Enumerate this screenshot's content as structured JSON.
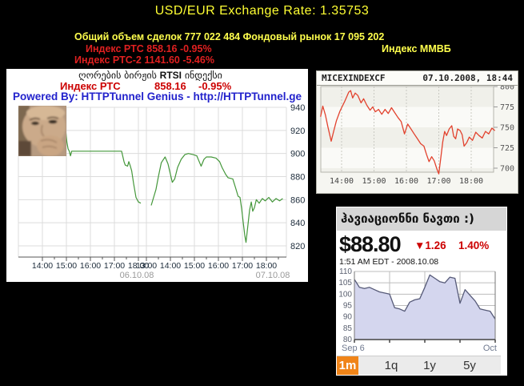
{
  "header": {
    "title": "USD/EUR Exchange Rate: 1.35753",
    "volume_line": "Общий объем сделок 777 022 484 Фондовый рынок 17 095 202",
    "rts_line": "Индекс РТС 858.16 -0.95%",
    "rts2_line": "Индекс РТС-2 1141.60 -5.46%",
    "mmvb_label": "Индекс ММВБ",
    "title_color": "#ffff33",
    "alert_color": "#e02020"
  },
  "rtsi_panel": {
    "georgian_title_pre": "ღორების ბირჟის ",
    "georgian_title_bold": "RTSI",
    "georgian_title_post": " ინდექსი",
    "index_label": "Индекс РТС",
    "index_value": "858.16",
    "index_change": "-0.95%",
    "powered_by": "Powered By: HTTPTunnel Genius  -  http://HTTPTunnel.ge"
  },
  "oil_widget": {
    "title": "ჰავიაციონნი ნავთი :)",
    "price": "$88.80",
    "change": "▼1.26",
    "change_pct": "1.40%",
    "timestamp": "1:51 AM EDT - 2008.10.08",
    "range_buttons": [
      "1m",
      "1q",
      "1y",
      "5y"
    ],
    "active_button": "1m",
    "active_color": "#f08418"
  },
  "chart_data": [
    {
      "id": "rtsi",
      "type": "line",
      "title": "ღორების ბირჟის RTSI ინდექსი",
      "line_color": "#44973a",
      "ylim": [
        810,
        946
      ],
      "yticks": [
        940,
        920,
        900,
        880,
        860,
        840,
        820
      ],
      "days": [
        {
          "date": "06.10.08",
          "xticks": [
            "14:00",
            "15:00",
            "16:00",
            "17:00",
            "18:00"
          ],
          "series": [
            [
              13.55,
              935
            ],
            [
              13.9,
              934
            ],
            [
              14.3,
              932
            ],
            [
              14.6,
              929
            ],
            [
              14.85,
              924
            ],
            [
              14.97,
              920
            ],
            [
              15.02,
              910
            ],
            [
              15.07,
              904
            ],
            [
              15.12,
              902
            ],
            [
              15.17,
              898
            ],
            [
              15.22,
              902
            ],
            [
              16.0,
              902
            ],
            [
              17.3,
              902
            ],
            [
              17.4,
              893
            ],
            [
              17.45,
              890
            ],
            [
              17.55,
              889
            ],
            [
              17.6,
              893
            ],
            [
              17.65,
              890
            ],
            [
              17.72,
              885
            ],
            [
              17.8,
              874
            ],
            [
              17.9,
              862
            ],
            [
              18.0,
              858
            ],
            [
              18.1,
              857
            ]
          ]
        },
        {
          "date": "07.10.08",
          "xticks": [
            "13:00",
            "14:00",
            "15:00",
            "16:00",
            "17:00",
            "18:00"
          ],
          "series": [
            [
              13.2,
              855
            ],
            [
              13.3,
              862
            ],
            [
              13.4,
              869
            ],
            [
              13.5,
              880
            ],
            [
              13.62,
              892
            ],
            [
              13.78,
              897
            ],
            [
              13.9,
              891
            ],
            [
              14.0,
              882
            ],
            [
              14.08,
              875
            ],
            [
              14.18,
              878
            ],
            [
              14.3,
              888
            ],
            [
              14.45,
              895
            ],
            [
              14.6,
              899
            ],
            [
              14.75,
              900
            ],
            [
              14.95,
              899
            ],
            [
              15.1,
              898
            ],
            [
              15.2,
              893
            ],
            [
              15.28,
              889
            ],
            [
              15.4,
              895
            ],
            [
              15.5,
              897
            ],
            [
              15.7,
              897
            ],
            [
              15.9,
              896
            ],
            [
              16.05,
              893
            ],
            [
              16.15,
              888
            ],
            [
              16.3,
              882
            ],
            [
              16.4,
              879
            ],
            [
              16.6,
              878
            ],
            [
              16.72,
              870
            ],
            [
              16.82,
              863
            ],
            [
              16.9,
              862
            ],
            [
              16.97,
              852
            ],
            [
              17.03,
              841
            ],
            [
              17.1,
              829
            ],
            [
              17.15,
              823
            ],
            [
              17.22,
              836
            ],
            [
              17.3,
              851
            ],
            [
              17.37,
              858
            ],
            [
              17.43,
              850
            ],
            [
              17.5,
              853
            ],
            [
              17.58,
              860
            ],
            [
              17.7,
              857
            ],
            [
              17.83,
              861
            ],
            [
              17.95,
              859
            ],
            [
              18.1,
              862
            ],
            [
              18.25,
              858
            ],
            [
              18.4,
              861
            ],
            [
              18.55,
              859
            ],
            [
              18.68,
              861
            ]
          ]
        }
      ]
    },
    {
      "id": "micex",
      "type": "line",
      "symbol": "MICEXINDEXCF",
      "timestamp": "07.10.2008, 18:44",
      "line_color": "#e2422e",
      "ylim": [
        695,
        800
      ],
      "yticks": [
        800,
        775,
        750,
        725,
        700
      ],
      "xticks": [
        "14:00",
        "15:00",
        "16:00",
        "17:00",
        "18:00"
      ],
      "series": [
        [
          13.35,
          763
        ],
        [
          13.42,
          776
        ],
        [
          13.5,
          765
        ],
        [
          13.58,
          750
        ],
        [
          13.68,
          733
        ],
        [
          13.76,
          746
        ],
        [
          13.84,
          758
        ],
        [
          13.95,
          770
        ],
        [
          14.1,
          782
        ],
        [
          14.22,
          793
        ],
        [
          14.28,
          795
        ],
        [
          14.34,
          786
        ],
        [
          14.42,
          792
        ],
        [
          14.5,
          789
        ],
        [
          14.6,
          780
        ],
        [
          14.68,
          785
        ],
        [
          14.78,
          777
        ],
        [
          14.88,
          771
        ],
        [
          14.96,
          775
        ],
        [
          15.04,
          769
        ],
        [
          15.14,
          772
        ],
        [
          15.24,
          766
        ],
        [
          15.34,
          772
        ],
        [
          15.44,
          767
        ],
        [
          15.54,
          774
        ],
        [
          15.64,
          768
        ],
        [
          15.74,
          762
        ],
        [
          15.84,
          757
        ],
        [
          15.94,
          742
        ],
        [
          16.04,
          754
        ],
        [
          16.14,
          748
        ],
        [
          16.24,
          742
        ],
        [
          16.34,
          736
        ],
        [
          16.44,
          730
        ],
        [
          16.54,
          727
        ],
        [
          16.62,
          717
        ],
        [
          16.7,
          708
        ],
        [
          16.78,
          714
        ],
        [
          16.86,
          709
        ],
        [
          16.94,
          699
        ],
        [
          17.0,
          693
        ],
        [
          17.06,
          712
        ],
        [
          17.12,
          732
        ],
        [
          17.18,
          745
        ],
        [
          17.24,
          740
        ],
        [
          17.32,
          748
        ],
        [
          17.4,
          752
        ],
        [
          17.46,
          739
        ],
        [
          17.52,
          736
        ],
        [
          17.58,
          748
        ],
        [
          17.66,
          746
        ],
        [
          17.72,
          741
        ],
        [
          17.78,
          727
        ],
        [
          17.86,
          731
        ],
        [
          17.94,
          738
        ],
        [
          18.04,
          734
        ],
        [
          18.14,
          744
        ],
        [
          18.24,
          740
        ],
        [
          18.34,
          737
        ],
        [
          18.44,
          745
        ],
        [
          18.54,
          742
        ],
        [
          18.64,
          749
        ],
        [
          18.73,
          746
        ]
      ]
    },
    {
      "id": "oil",
      "type": "area",
      "fill_color": "#d4d6ee",
      "line_color": "#565a78",
      "ylim": [
        80,
        110
      ],
      "yticks": [
        110,
        105,
        100,
        95,
        90,
        85,
        80
      ],
      "x_start_label": "Sep 6",
      "x_end_label": "Oct",
      "values": [
        106.5,
        103,
        102.5,
        103,
        102,
        101,
        100.5,
        100,
        94,
        93.5,
        92.5,
        96.5,
        97.5,
        98,
        103,
        108.5,
        107,
        105.5,
        105,
        107.5,
        107,
        96,
        102,
        99.5,
        97,
        93.5,
        93,
        92.5,
        89
      ]
    }
  ]
}
